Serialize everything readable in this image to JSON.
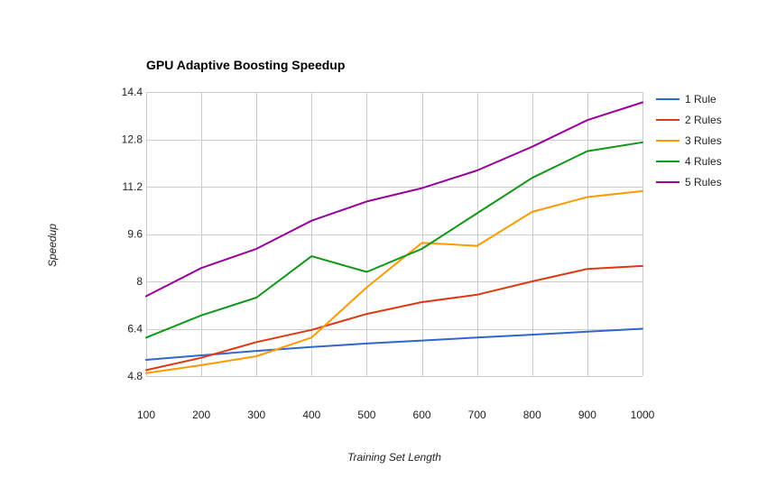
{
  "chart_data": {
    "type": "line",
    "title": "GPU Adaptive Boosting Speedup",
    "xlabel": "Training Set Length",
    "ylabel": "Speedup",
    "x": [
      100,
      200,
      300,
      400,
      500,
      600,
      700,
      800,
      900,
      1000
    ],
    "xlim": [
      100,
      1000
    ],
    "ylim": [
      4.8,
      14.4
    ],
    "yticks": [
      "4.8",
      "6.4",
      "8",
      "9.6",
      "11.2",
      "12.8",
      "14.4"
    ],
    "grid": true,
    "legend_position": "right",
    "series": [
      {
        "name": "1 Rule",
        "color": "#3366cc",
        "values": [
          5.35,
          5.5,
          5.65,
          5.78,
          5.9,
          6.0,
          6.1,
          6.2,
          6.3,
          6.4
        ]
      },
      {
        "name": "2 Rules",
        "color": "#dc3912",
        "values": [
          5.0,
          5.42,
          5.95,
          6.36,
          6.9,
          7.3,
          7.55,
          8.0,
          8.42,
          8.52
        ]
      },
      {
        "name": "3 Rules",
        "color": "#ff9900",
        "values": [
          4.9,
          5.17,
          5.47,
          6.1,
          7.8,
          9.3,
          9.2,
          10.35,
          10.85,
          11.05
        ]
      },
      {
        "name": "4 Rules",
        "color": "#109618",
        "values": [
          6.1,
          6.85,
          7.45,
          8.85,
          8.32,
          9.1,
          10.3,
          11.5,
          12.4,
          12.7
        ]
      },
      {
        "name": "5 Rules",
        "color": "#990099",
        "values": [
          7.5,
          8.45,
          9.1,
          10.05,
          10.7,
          11.15,
          11.75,
          12.55,
          13.45,
          14.05
        ]
      }
    ]
  }
}
